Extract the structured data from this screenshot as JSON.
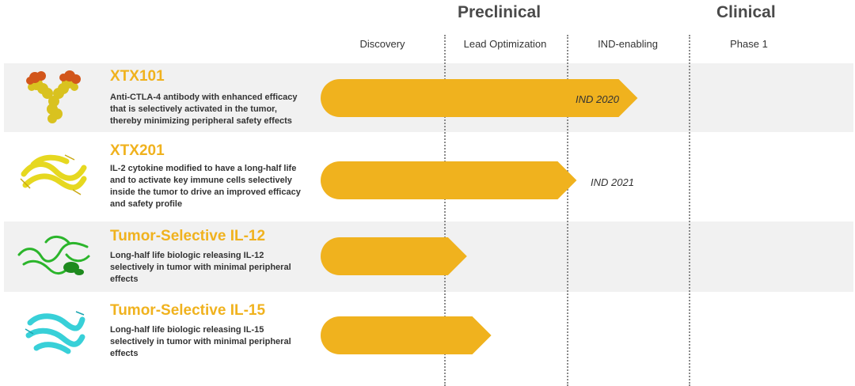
{
  "header": {
    "groups": [
      {
        "label": "Preclinical"
      },
      {
        "label": "Clinical"
      }
    ],
    "stages": [
      {
        "label": "Discovery"
      },
      {
        "label": "Lead Optimization"
      },
      {
        "label": "IND-enabling"
      },
      {
        "label": "Phase 1"
      }
    ]
  },
  "programs": [
    {
      "name": "XTX101",
      "description": "Anti-CTLA-4 antibody with enhanced efficacy that is selectively activated in the tumor, thereby minimizing peripheral safety effects",
      "milestone": "IND 2020",
      "icon": "antibody-icon"
    },
    {
      "name": "XTX201",
      "description": "IL-2 cytokine modified to have a long-half life and to activate key immune cells selectively inside the tumor to drive an improved efficacy and safety profile",
      "milestone": "IND 2021",
      "icon": "il2-protein-icon"
    },
    {
      "name": "Tumor-Selective IL-12",
      "description": "Long-half life biologic releasing IL-12 selectively in tumor with minimal peripheral effects",
      "milestone": "",
      "icon": "il12-protein-icon"
    },
    {
      "name": "Tumor-Selective IL-15",
      "description": "Long-half life biologic releasing IL-15 selectively in tumor with minimal peripheral effects",
      "milestone": "",
      "icon": "il15-protein-icon"
    }
  ],
  "chart_data": {
    "type": "bar",
    "categories": [
      "XTX101",
      "XTX201",
      "Tumor-Selective IL-12",
      "Tumor-Selective IL-15"
    ],
    "stages": [
      "Discovery",
      "Lead Optimization",
      "IND-enabling",
      "Phase 1"
    ],
    "values": [
      2.6,
      2.1,
      1.2,
      1.4
    ],
    "xlim": [
      0,
      4
    ],
    "annotations": [
      "IND 2020",
      "IND 2021",
      "",
      ""
    ],
    "colors": {
      "bar": "#f0b21e",
      "title": "#f0b21e",
      "band": "#f1f1f1"
    }
  }
}
